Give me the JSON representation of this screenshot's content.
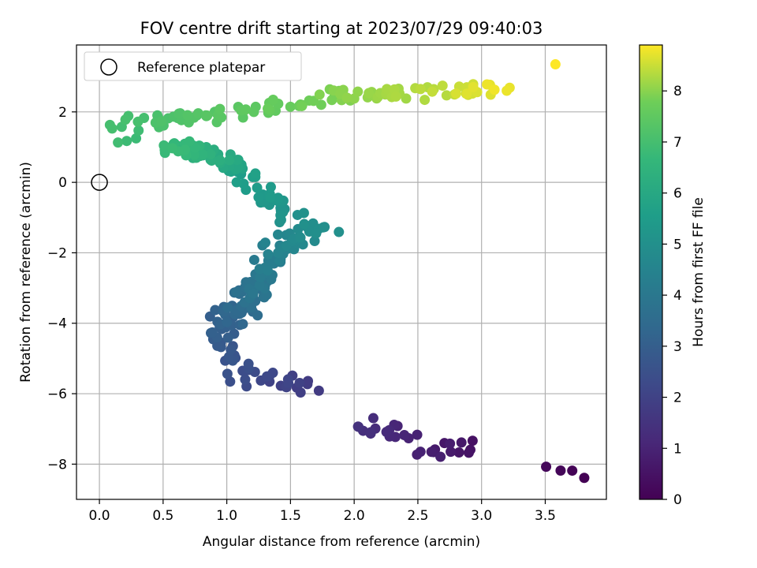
{
  "chart_data": {
    "type": "scatter",
    "title": "FOV centre drift starting at 2023/07/29 09:40:03",
    "xlabel": "Angular distance from reference (arcmin)",
    "ylabel": "Rotation from reference (arcmin)",
    "xlim": [
      -0.18,
      3.98
    ],
    "ylim": [
      -9.0,
      3.9
    ],
    "xticks": [
      "0.0",
      "0.5",
      "1.0",
      "1.5",
      "2.0",
      "2.5",
      "3.0",
      "3.5"
    ],
    "yticks": [
      "−8",
      "−6",
      "−4",
      "−2",
      "0",
      "2"
    ],
    "grid": true,
    "legend": {
      "position": "top-left",
      "entries": [
        "Reference platepar"
      ]
    },
    "reference_point": {
      "x": 0.0,
      "y": 0.0
    },
    "colorbar": {
      "label": "Hours from first FF file",
      "range": [
        0,
        8.9
      ],
      "ticks": [
        "0",
        "1",
        "2",
        "3",
        "4",
        "5",
        "6",
        "7",
        "8"
      ],
      "colormap": "viridis"
    },
    "segments": [
      {
        "x0": 3.8,
        "y0": -8.35,
        "x1": 3.52,
        "y1": -8.15,
        "t0": 0.0,
        "t1": 0.2,
        "n": 4,
        "jx": 0.02,
        "jy": 0.1
      },
      {
        "x0": 2.88,
        "y0": -7.5,
        "x1": 2.55,
        "y1": -7.65,
        "t0": 0.45,
        "t1": 0.95,
        "n": 14,
        "jx": 0.12,
        "jy": 0.25
      },
      {
        "x0": 2.4,
        "y0": -7.15,
        "x1": 2.05,
        "y1": -6.8,
        "t0": 0.95,
        "t1": 1.45,
        "n": 16,
        "jx": 0.1,
        "jy": 0.25
      },
      {
        "x0": 1.65,
        "y0": -5.9,
        "x1": 1.1,
        "y1": -5.5,
        "t0": 1.75,
        "t1": 2.5,
        "n": 26,
        "jx": 0.12,
        "jy": 0.35
      },
      {
        "x0": 1.05,
        "y0": -5.2,
        "x1": 0.95,
        "y1": -4.3,
        "t0": 2.5,
        "t1": 3.0,
        "n": 16,
        "jx": 0.1,
        "jy": 0.3
      },
      {
        "x0": 0.95,
        "y0": -4.1,
        "x1": 1.25,
        "y1": -3.0,
        "t0": 3.0,
        "t1": 3.9,
        "n": 55,
        "jx": 0.12,
        "jy": 0.35
      },
      {
        "x0": 1.25,
        "y0": -3.0,
        "x1": 1.4,
        "y1": -1.8,
        "t0": 3.9,
        "t1": 4.5,
        "n": 38,
        "jx": 0.1,
        "jy": 0.35
      },
      {
        "x0": 1.4,
        "y0": -1.8,
        "x1": 1.8,
        "y1": -1.2,
        "t0": 4.5,
        "t1": 5.0,
        "n": 30,
        "jx": 0.1,
        "jy": 0.25
      },
      {
        "x0": 1.55,
        "y0": -1.1,
        "x1": 1.2,
        "y1": -0.2,
        "t0": 5.0,
        "t1": 5.5,
        "n": 24,
        "jx": 0.12,
        "jy": 0.2
      },
      {
        "x0": 1.2,
        "y0": 0.1,
        "x1": 0.9,
        "y1": 0.8,
        "t0": 5.5,
        "t1": 6.2,
        "n": 22,
        "jx": 0.12,
        "jy": 0.2
      },
      {
        "x0": 0.9,
        "y0": 0.8,
        "x1": 0.55,
        "y1": 1.0,
        "t0": 6.2,
        "t1": 6.8,
        "n": 40,
        "jx": 0.12,
        "jy": 0.2
      },
      {
        "x0": 0.3,
        "y0": 1.3,
        "x1": 0.1,
        "y1": 1.4,
        "t0": 6.8,
        "t1": 7.0,
        "n": 6,
        "jx": 0.1,
        "jy": 0.3
      },
      {
        "x0": 0.2,
        "y0": 1.7,
        "x1": 1.0,
        "y1": 1.9,
        "t0": 7.0,
        "t1": 7.4,
        "n": 30,
        "jx": 0.12,
        "jy": 0.18
      },
      {
        "x0": 1.0,
        "y0": 2.0,
        "x1": 1.8,
        "y1": 2.4,
        "t0": 7.4,
        "t1": 7.9,
        "n": 26,
        "jx": 0.15,
        "jy": 0.18
      },
      {
        "x0": 1.8,
        "y0": 2.5,
        "x1": 2.5,
        "y1": 2.5,
        "t0": 7.9,
        "t1": 8.3,
        "n": 28,
        "jx": 0.15,
        "jy": 0.18
      },
      {
        "x0": 2.55,
        "y0": 2.6,
        "x1": 3.2,
        "y1": 2.7,
        "t0": 8.3,
        "t1": 8.8,
        "n": 24,
        "jx": 0.15,
        "jy": 0.18
      },
      {
        "x0": 3.58,
        "y0": 3.35,
        "x1": 3.58,
        "y1": 3.35,
        "t0": 8.9,
        "t1": 8.9,
        "n": 1,
        "jx": 0.0,
        "jy": 0.0
      }
    ]
  }
}
